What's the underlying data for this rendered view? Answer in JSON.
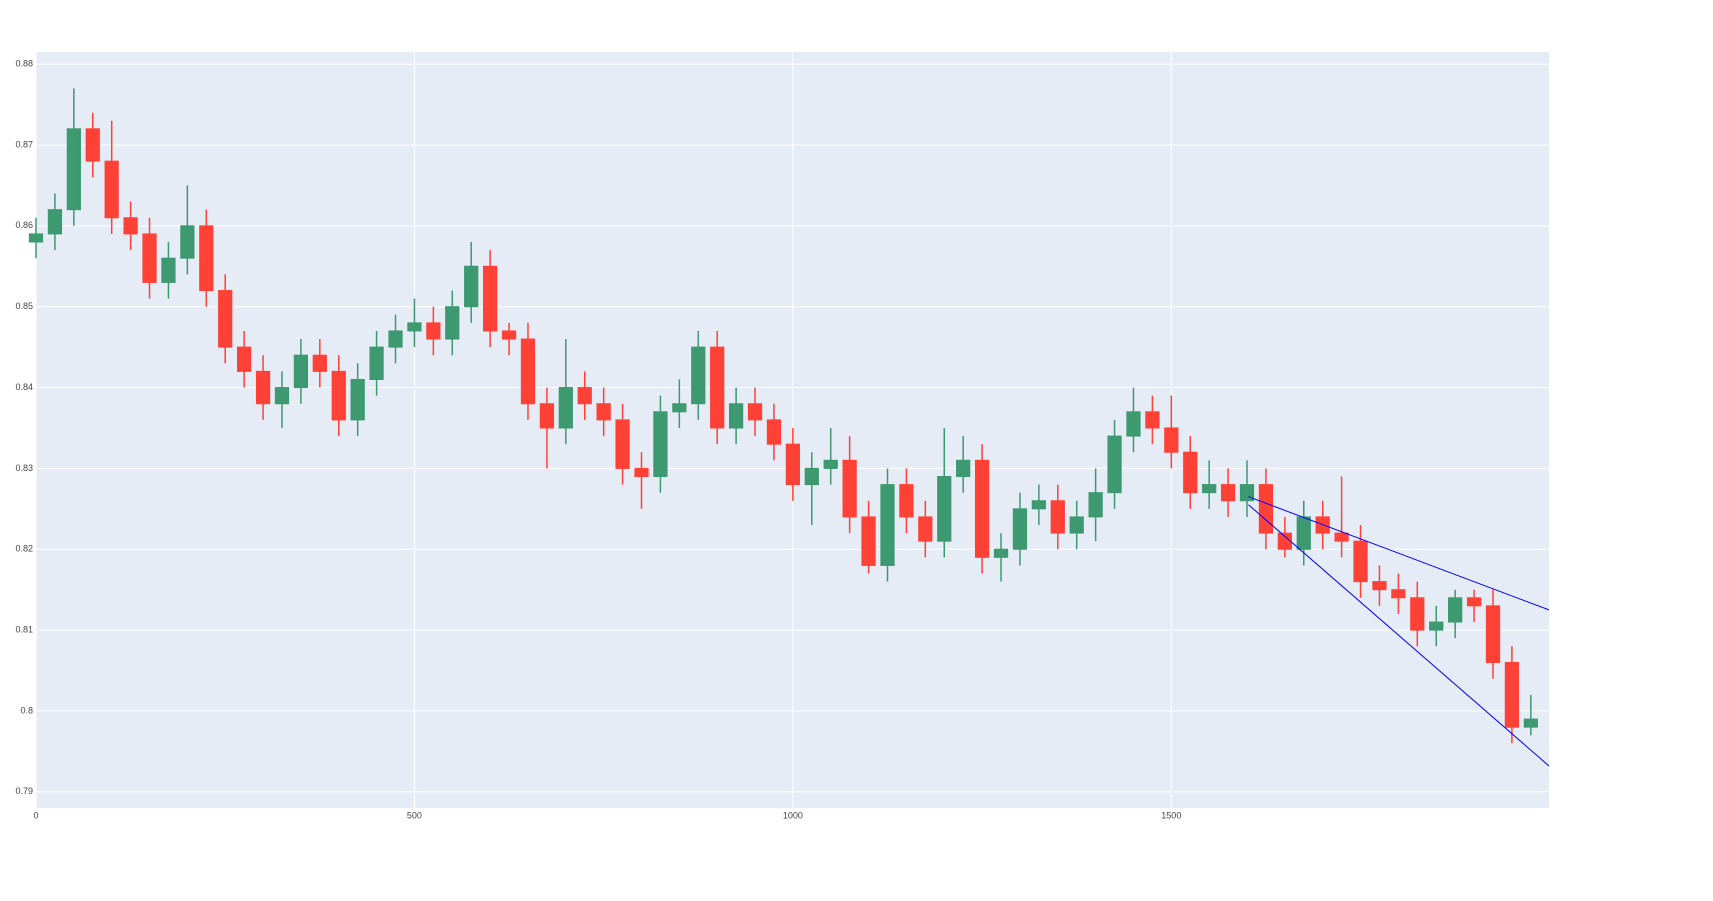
{
  "chart_data": {
    "type": "candlestick",
    "x": [
      0,
      25,
      50,
      75,
      100,
      125,
      150,
      175,
      200,
      225,
      250,
      275,
      300,
      325,
      350,
      375,
      400,
      425,
      450,
      475,
      500,
      525,
      550,
      575,
      600,
      625,
      650,
      675,
      700,
      725,
      750,
      775,
      800,
      825,
      850,
      875,
      900,
      925,
      950,
      975,
      1000,
      1025,
      1050,
      1075,
      1100,
      1125,
      1150,
      1175,
      1200,
      1225,
      1250,
      1275,
      1300,
      1325,
      1350,
      1375,
      1400,
      1425,
      1450,
      1475,
      1500,
      1525,
      1550,
      1575,
      1600,
      1625,
      1650,
      1675,
      1700,
      1725,
      1750,
      1775,
      1800,
      1825,
      1850,
      1875,
      1900,
      1925,
      1950,
      1975
    ],
    "open": [
      0.858,
      0.859,
      0.862,
      0.872,
      0.868,
      0.861,
      0.859,
      0.853,
      0.856,
      0.86,
      0.852,
      0.845,
      0.842,
      0.838,
      0.84,
      0.844,
      0.842,
      0.836,
      0.841,
      0.845,
      0.847,
      0.848,
      0.846,
      0.85,
      0.855,
      0.847,
      0.846,
      0.838,
      0.835,
      0.84,
      0.838,
      0.836,
      0.83,
      0.829,
      0.837,
      0.838,
      0.845,
      0.835,
      0.838,
      0.836,
      0.833,
      0.828,
      0.83,
      0.831,
      0.824,
      0.818,
      0.828,
      0.824,
      0.821,
      0.829,
      0.831,
      0.819,
      0.82,
      0.825,
      0.826,
      0.822,
      0.824,
      0.827,
      0.834,
      0.837,
      0.835,
      0.832,
      0.827,
      0.828,
      0.826,
      0.828,
      0.822,
      0.82,
      0.824,
      0.822,
      0.821,
      0.816,
      0.815,
      0.814,
      0.81,
      0.811,
      0.814,
      0.813,
      0.806,
      0.798
    ],
    "high": [
      0.861,
      0.864,
      0.877,
      0.874,
      0.873,
      0.863,
      0.861,
      0.858,
      0.865,
      0.862,
      0.854,
      0.847,
      0.844,
      0.842,
      0.846,
      0.846,
      0.844,
      0.843,
      0.847,
      0.849,
      0.851,
      0.85,
      0.852,
      0.858,
      0.857,
      0.848,
      0.848,
      0.84,
      0.846,
      0.842,
      0.84,
      0.838,
      0.832,
      0.839,
      0.841,
      0.847,
      0.847,
      0.84,
      0.84,
      0.838,
      0.835,
      0.832,
      0.835,
      0.834,
      0.826,
      0.83,
      0.83,
      0.826,
      0.835,
      0.834,
      0.833,
      0.822,
      0.827,
      0.828,
      0.828,
      0.826,
      0.83,
      0.836,
      0.84,
      0.839,
      0.839,
      0.834,
      0.831,
      0.83,
      0.831,
      0.83,
      0.824,
      0.826,
      0.826,
      0.829,
      0.823,
      0.818,
      0.817,
      0.816,
      0.813,
      0.815,
      0.815,
      0.815,
      0.808,
      0.802
    ],
    "low": [
      0.856,
      0.857,
      0.86,
      0.866,
      0.859,
      0.857,
      0.851,
      0.851,
      0.854,
      0.85,
      0.843,
      0.84,
      0.836,
      0.835,
      0.838,
      0.84,
      0.834,
      0.834,
      0.839,
      0.843,
      0.845,
      0.844,
      0.844,
      0.848,
      0.845,
      0.844,
      0.836,
      0.83,
      0.833,
      0.836,
      0.834,
      0.828,
      0.825,
      0.827,
      0.835,
      0.836,
      0.833,
      0.833,
      0.834,
      0.831,
      0.826,
      0.823,
      0.828,
      0.822,
      0.817,
      0.816,
      0.822,
      0.819,
      0.819,
      0.827,
      0.817,
      0.816,
      0.818,
      0.823,
      0.82,
      0.82,
      0.821,
      0.825,
      0.832,
      0.833,
      0.83,
      0.825,
      0.825,
      0.824,
      0.824,
      0.82,
      0.819,
      0.818,
      0.82,
      0.819,
      0.814,
      0.813,
      0.812,
      0.808,
      0.808,
      0.809,
      0.811,
      0.804,
      0.796,
      0.797
    ],
    "close": [
      0.859,
      0.862,
      0.872,
      0.868,
      0.861,
      0.859,
      0.853,
      0.856,
      0.86,
      0.852,
      0.845,
      0.842,
      0.838,
      0.84,
      0.844,
      0.842,
      0.836,
      0.841,
      0.845,
      0.847,
      0.848,
      0.846,
      0.85,
      0.855,
      0.847,
      0.846,
      0.838,
      0.835,
      0.84,
      0.838,
      0.836,
      0.83,
      0.829,
      0.837,
      0.838,
      0.845,
      0.835,
      0.838,
      0.836,
      0.833,
      0.828,
      0.83,
      0.831,
      0.824,
      0.818,
      0.828,
      0.824,
      0.821,
      0.829,
      0.831,
      0.819,
      0.82,
      0.825,
      0.826,
      0.822,
      0.824,
      0.827,
      0.834,
      0.837,
      0.835,
      0.832,
      0.827,
      0.828,
      0.826,
      0.828,
      0.822,
      0.82,
      0.824,
      0.822,
      0.821,
      0.816,
      0.815,
      0.814,
      0.81,
      0.811,
      0.814,
      0.813,
      0.806,
      0.798,
      0.799
    ],
    "increasing_color": "#3d9970",
    "decreasing_color": "#ff4136",
    "lines": [
      {
        "x": [
          1602,
          1999
        ],
        "y": [
          0.8265,
          0.8125
        ],
        "color": "#0000ff"
      },
      {
        "x": [
          1602,
          1999
        ],
        "y": [
          0.8255,
          0.7932
        ],
        "color": "#0000ff"
      }
    ],
    "xlim": [
      0,
      1999
    ],
    "ylim": [
      0.788,
      0.8815
    ],
    "xticks": [
      0,
      500,
      1000,
      1500
    ],
    "yticks": [
      0.79,
      0.8,
      0.81,
      0.82,
      0.83,
      0.84,
      0.85,
      0.86,
      0.87,
      0.88
    ],
    "grid": true
  }
}
